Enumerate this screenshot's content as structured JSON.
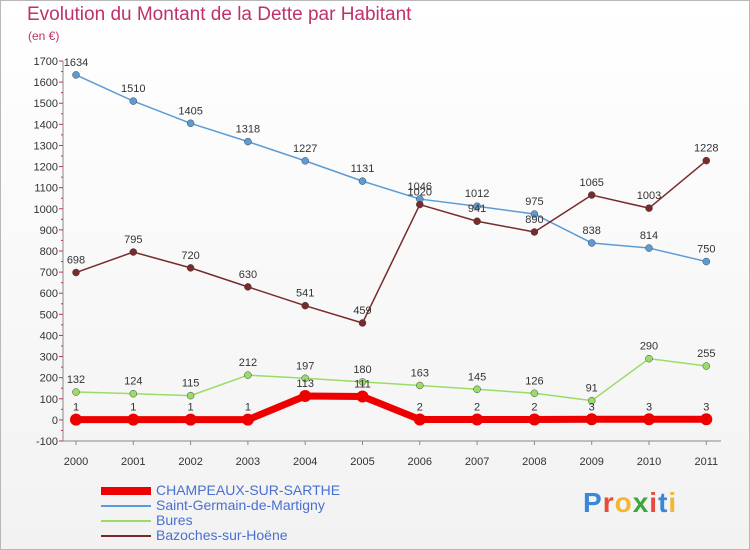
{
  "title": "Evolution du Montant de la Dette par Habitant",
  "unit": "(en €)",
  "logo": {
    "text": "Proxiti",
    "letter_colors": [
      "#3a86d8",
      "#e64b3c",
      "#f2b731",
      "#3aa83a",
      "#e64b3c",
      "#3a86d8",
      "#f2b731"
    ]
  },
  "chart_data": {
    "type": "line",
    "title": "Evolution du Montant de la Dette par Habitant",
    "ylabel": "(en €)",
    "xlabel": "",
    "ylim": [
      -100,
      1700
    ],
    "y_ticks": [
      -100,
      0,
      100,
      200,
      300,
      400,
      500,
      600,
      700,
      800,
      900,
      1000,
      1100,
      1200,
      1300,
      1400,
      1500,
      1600,
      1700
    ],
    "categories": [
      "2000",
      "2001",
      "2002",
      "2003",
      "2004",
      "2005",
      "2006",
      "2007",
      "2008",
      "2009",
      "2010",
      "2011"
    ],
    "grid": false,
    "legend_position": "bottom-left",
    "series": [
      {
        "name": "CHAMPEAUX-SUR-SARTHE",
        "color": "#ee0000",
        "highlight": true,
        "values": [
          1,
          1,
          1,
          1,
          113,
          111,
          2,
          2,
          2,
          3,
          3,
          3
        ],
        "labels": [
          "1",
          "1",
          "1",
          "1",
          "113",
          "111",
          "2",
          "2",
          "2",
          "3",
          "3",
          "3"
        ]
      },
      {
        "name": "Saint-Germain-de-Martigny",
        "color": "#5c9bd6",
        "values": [
          1634,
          1510,
          1405,
          1318,
          1227,
          1131,
          1046,
          1012,
          975,
          838,
          814,
          750
        ],
        "labels": [
          "1634",
          "1510",
          "1405",
          "1318",
          "1227",
          "1131",
          "1046",
          "1012",
          "975",
          "838",
          "814",
          "750"
        ]
      },
      {
        "name": "Bures",
        "color": "#99dd66",
        "values": [
          132,
          124,
          115,
          212,
          197,
          180,
          163,
          145,
          126,
          91,
          290,
          255
        ],
        "labels": [
          "132",
          "124",
          "115",
          "212",
          "197",
          "180",
          "163",
          "145",
          "126",
          "91",
          "290",
          "255"
        ]
      },
      {
        "name": "Bazoches-sur-Hoëne",
        "color": "#7a2a2a",
        "values": [
          698,
          795,
          720,
          630,
          541,
          459,
          1020,
          941,
          890,
          1065,
          1003,
          1228
        ],
        "labels": [
          "698",
          "795",
          "720",
          "630",
          "541",
          "459",
          "1020",
          "941",
          "890",
          "1065",
          "1003",
          "1228"
        ]
      }
    ]
  }
}
